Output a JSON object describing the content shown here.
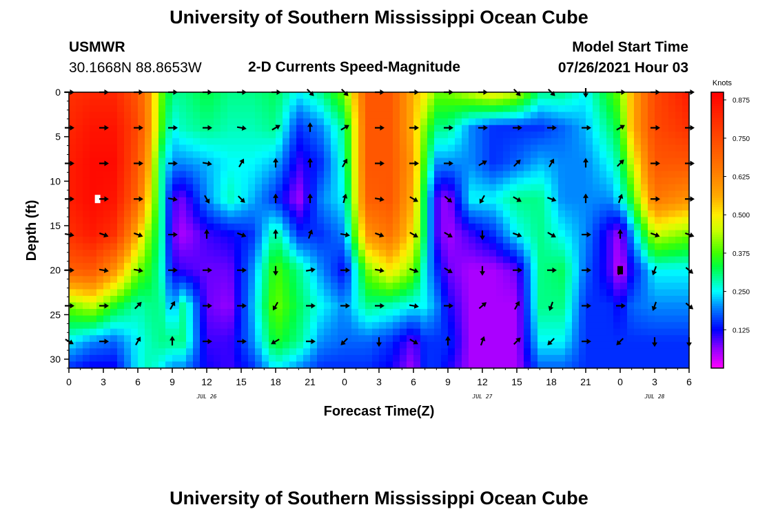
{
  "header": {
    "title": "University of Southern Mississippi Ocean Cube",
    "station": "USMWR",
    "coords": "30.1668N  88.8653W",
    "subtitle": "2-D Currents Speed-Magnitude",
    "model_label": "Model Start Time",
    "model_time": "07/26/2021 Hour 03"
  },
  "footer": {
    "title": "University of Southern Mississippi Ocean Cube"
  },
  "chart_data": {
    "type": "heatmap",
    "title": "2-D Currents Speed-Magnitude",
    "xlabel": "Forecast Time(Z)",
    "ylabel": "Depth (ft)",
    "x_tick_labels": [
      "0",
      "3",
      "6",
      "9",
      "12",
      "15",
      "18",
      "21",
      "0",
      "3",
      "6",
      "9",
      "12",
      "15",
      "18",
      "21",
      "0",
      "3",
      "6"
    ],
    "date_labels": [
      {
        "label": "JUL 26",
        "after_tick_index": 4
      },
      {
        "label": "JUL 27",
        "after_tick_index": 12
      },
      {
        "label": "JUL 28",
        "after_tick_index": 17
      }
    ],
    "xlim_hours": [
      0,
      54
    ],
    "y_ticks": [
      0,
      5,
      10,
      15,
      20,
      25,
      30
    ],
    "ylim": [
      0,
      31
    ],
    "y_inverted": true,
    "colorbar": {
      "title": "Knots",
      "ticks": [
        "0.875",
        "0.750",
        "0.625",
        "0.500",
        "0.375",
        "0.250",
        "0.125"
      ],
      "range": [
        0,
        0.9
      ],
      "stops": [
        {
          "v": 0.0,
          "color": "#ff00ff"
        },
        {
          "v": 0.06,
          "color": "#9900ff"
        },
        {
          "v": 0.125,
          "color": "#0000ff"
        },
        {
          "v": 0.2,
          "color": "#0088ff"
        },
        {
          "v": 0.25,
          "color": "#00ffff"
        },
        {
          "v": 0.33,
          "color": "#00ff40"
        },
        {
          "v": 0.375,
          "color": "#40ff00"
        },
        {
          "v": 0.45,
          "color": "#ccff00"
        },
        {
          "v": 0.5,
          "color": "#ffee00"
        },
        {
          "v": 0.56,
          "color": "#ffaa00"
        },
        {
          "v": 0.65,
          "color": "#ff7700"
        },
        {
          "v": 0.76,
          "color": "#ff4400"
        },
        {
          "v": 0.9,
          "color": "#ff0000"
        }
      ]
    },
    "depths_ft": [
      0,
      4,
      8,
      12,
      16,
      20,
      24,
      28,
      31
    ],
    "speed_columns": [
      {
        "hour": 0,
        "v": [
          0.8,
          0.82,
          0.84,
          0.84,
          0.8,
          0.7,
          0.4,
          0.25,
          0.15
        ]
      },
      {
        "hour": 2,
        "v": [
          0.82,
          0.86,
          0.88,
          0.88,
          0.85,
          0.72,
          0.45,
          0.2,
          0.12
        ]
      },
      {
        "hour": 4,
        "v": [
          0.82,
          0.86,
          0.88,
          0.86,
          0.8,
          0.6,
          0.35,
          0.18,
          0.12
        ]
      },
      {
        "hour": 6,
        "v": [
          0.72,
          0.75,
          0.72,
          0.68,
          0.55,
          0.4,
          0.28,
          0.25,
          0.25
        ]
      },
      {
        "hour": 7,
        "v": [
          0.6,
          0.6,
          0.55,
          0.5,
          0.4,
          0.35,
          0.3,
          0.28,
          0.28
        ]
      },
      {
        "hour": 8,
        "v": [
          0.4,
          0.38,
          0.3,
          0.3,
          0.3,
          0.28,
          0.3,
          0.3,
          0.25
        ]
      },
      {
        "hour": 9,
        "v": [
          0.3,
          0.25,
          0.2,
          0.1,
          0.08,
          0.12,
          0.2,
          0.3,
          0.2
        ]
      },
      {
        "hour": 10,
        "v": [
          0.3,
          0.28,
          0.2,
          0.08,
          0.05,
          0.1,
          0.3,
          0.3,
          0.2
        ]
      },
      {
        "hour": 12,
        "v": [
          0.33,
          0.3,
          0.22,
          0.2,
          0.1,
          0.08,
          0.08,
          0.1,
          0.12
        ]
      },
      {
        "hour": 14,
        "v": [
          0.3,
          0.28,
          0.25,
          0.28,
          0.12,
          0.08,
          0.06,
          0.1,
          0.1
        ]
      },
      {
        "hour": 16,
        "v": [
          0.3,
          0.28,
          0.25,
          0.22,
          0.15,
          0.2,
          0.22,
          0.2,
          0.15
        ]
      },
      {
        "hour": 18,
        "v": [
          0.32,
          0.3,
          0.22,
          0.15,
          0.3,
          0.38,
          0.4,
          0.35,
          0.25
        ]
      },
      {
        "hour": 20,
        "v": [
          0.25,
          0.15,
          0.1,
          0.05,
          0.15,
          0.3,
          0.32,
          0.3,
          0.2
        ]
      },
      {
        "hour": 22,
        "v": [
          0.3,
          0.2,
          0.15,
          0.2,
          0.15,
          0.2,
          0.25,
          0.2,
          0.15
        ]
      },
      {
        "hour": 24,
        "v": [
          0.4,
          0.3,
          0.28,
          0.25,
          0.2,
          0.12,
          0.2,
          0.18,
          0.15
        ]
      },
      {
        "hour": 26,
        "v": [
          0.72,
          0.72,
          0.72,
          0.7,
          0.6,
          0.4,
          0.3,
          0.18,
          0.15
        ]
      },
      {
        "hour": 28,
        "v": [
          0.72,
          0.72,
          0.72,
          0.72,
          0.66,
          0.5,
          0.28,
          0.15,
          0.12
        ]
      },
      {
        "hour": 30,
        "v": [
          0.55,
          0.55,
          0.58,
          0.55,
          0.5,
          0.4,
          0.25,
          0.08,
          0.05
        ]
      },
      {
        "hour": 31,
        "v": [
          0.5,
          0.4,
          0.35,
          0.3,
          0.3,
          0.25,
          0.25,
          0.15,
          0.15
        ]
      },
      {
        "hour": 32,
        "v": [
          0.4,
          0.3,
          0.2,
          0.1,
          0.1,
          0.15,
          0.2,
          0.15,
          0.15
        ]
      },
      {
        "hour": 33,
        "v": [
          0.4,
          0.3,
          0.2,
          0.05,
          0.05,
          0.08,
          0.12,
          0.15,
          0.12
        ]
      },
      {
        "hour": 35,
        "v": [
          0.45,
          0.2,
          0.2,
          0.25,
          0.1,
          0.05,
          0.05,
          0.05,
          0.05
        ]
      },
      {
        "hour": 37,
        "v": [
          0.5,
          0.15,
          0.15,
          0.25,
          0.15,
          0.05,
          0.05,
          0.05,
          0.05
        ]
      },
      {
        "hour": 39,
        "v": [
          0.45,
          0.15,
          0.18,
          0.3,
          0.25,
          0.08,
          0.05,
          0.05,
          0.05
        ]
      },
      {
        "hour": 41,
        "v": [
          0.3,
          0.15,
          0.22,
          0.3,
          0.3,
          0.3,
          0.3,
          0.25,
          0.18
        ]
      },
      {
        "hour": 43,
        "v": [
          0.3,
          0.18,
          0.2,
          0.2,
          0.25,
          0.32,
          0.3,
          0.25,
          0.18
        ]
      },
      {
        "hour": 45,
        "v": [
          0.25,
          0.22,
          0.2,
          0.2,
          0.2,
          0.18,
          0.15,
          0.15,
          0.15
        ]
      },
      {
        "hour": 47,
        "v": [
          0.35,
          0.3,
          0.25,
          0.2,
          0.1,
          0.1,
          0.15,
          0.15,
          0.15
        ]
      },
      {
        "hour": 48,
        "v": [
          0.4,
          0.35,
          0.3,
          0.25,
          0.05,
          0.03,
          0.12,
          0.15,
          0.15
        ]
      },
      {
        "hour": 49,
        "v": [
          0.55,
          0.55,
          0.45,
          0.35,
          0.2,
          0.12,
          0.18,
          0.15,
          0.15
        ]
      },
      {
        "hour": 51,
        "v": [
          0.75,
          0.75,
          0.72,
          0.65,
          0.45,
          0.25,
          0.2,
          0.15,
          0.15
        ]
      },
      {
        "hour": 54,
        "v": [
          0.85,
          0.8,
          0.72,
          0.6,
          0.4,
          0.25,
          0.2,
          0.15,
          0.15
        ]
      }
    ],
    "vector_hours": [
      0,
      3,
      6,
      9,
      12,
      15,
      18,
      21,
      24,
      27,
      30,
      33,
      36,
      39,
      42,
      45,
      48,
      51,
      54
    ],
    "vector_depths_ft": [
      0,
      4,
      8,
      12,
      16,
      20,
      24,
      28
    ],
    "vector_direction_deg": [
      [
        90,
        90,
        90,
        90,
        90,
        90,
        90,
        135,
        135,
        90,
        90,
        90,
        90,
        135,
        135,
        180,
        90,
        90,
        90
      ],
      [
        90,
        90,
        90,
        90,
        90,
        100,
        60,
        0,
        60,
        90,
        90,
        90,
        90,
        90,
        90,
        90,
        60,
        90,
        90
      ],
      [
        90,
        90,
        90,
        90,
        100,
        30,
        0,
        0,
        30,
        90,
        90,
        90,
        60,
        45,
        30,
        0,
        45,
        90,
        90
      ],
      [
        90,
        90,
        90,
        100,
        150,
        135,
        0,
        0,
        15,
        100,
        120,
        130,
        210,
        120,
        110,
        0,
        20,
        90,
        90
      ],
      [
        100,
        110,
        110,
        90,
        0,
        110,
        0,
        20,
        100,
        110,
        120,
        120,
        180,
        110,
        120,
        90,
        0,
        110,
        110
      ],
      [
        90,
        100,
        100,
        90,
        90,
        90,
        180,
        80,
        90,
        100,
        110,
        120,
        180,
        90,
        90,
        90,
        200,
        200,
        130
      ],
      [
        90,
        90,
        45,
        30,
        90,
        90,
        210,
        90,
        90,
        90,
        100,
        90,
        50,
        30,
        200,
        90,
        90,
        200,
        130
      ],
      [
        120,
        90,
        30,
        0,
        90,
        90,
        240,
        90,
        225,
        180,
        120,
        0,
        20,
        45,
        225,
        90,
        225,
        180,
        180
      ]
    ],
    "markers": [
      {
        "hour": 2.5,
        "depth": 12,
        "color": "#ffffff"
      },
      {
        "hour": 48,
        "depth": 20,
        "color": "#000000"
      }
    ]
  }
}
